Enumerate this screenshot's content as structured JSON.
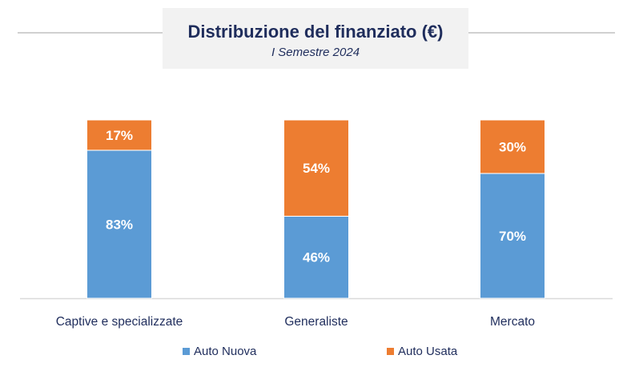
{
  "chart_data": {
    "type": "bar",
    "stacked": true,
    "title": "Distribuzione del finanziato (€)",
    "subtitle": "I Semestre 2024",
    "categories": [
      "Captive e specializzate",
      "Generaliste",
      "Mercato"
    ],
    "series": [
      {
        "name": "Auto Nuova",
        "values": [
          83,
          46,
          70
        ],
        "labels": [
          "83%",
          "46%",
          "70%"
        ],
        "color": "#5b9bd5"
      },
      {
        "name": "Auto Usata",
        "values": [
          17,
          54,
          30
        ],
        "labels": [
          "17%",
          "54%",
          "30%"
        ],
        "color": "#ed7d31"
      }
    ],
    "ylim": [
      0,
      100
    ],
    "grid": false,
    "legend_position": "bottom"
  }
}
